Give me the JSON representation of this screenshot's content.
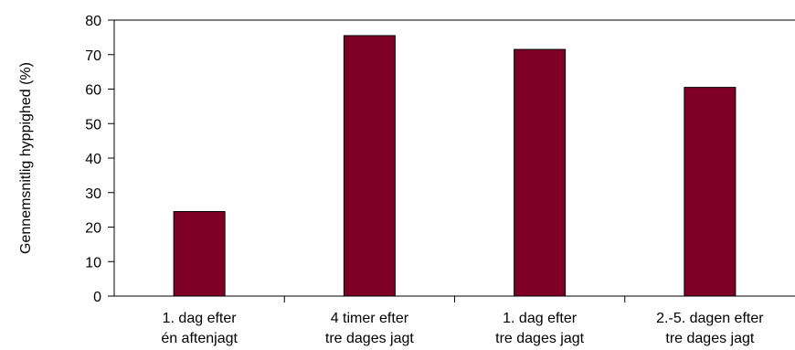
{
  "chart_data": {
    "type": "bar",
    "categories": [
      [
        "1. dag efter",
        "én aftenjagt"
      ],
      [
        "4 timer efter",
        "tre dages jagt"
      ],
      [
        "1. dag efter",
        "tre dages jagt"
      ],
      [
        "2.-5. dagen efter",
        "tre dages jagt"
      ]
    ],
    "values": [
      24.5,
      75.5,
      71.5,
      60.5
    ],
    "title": "",
    "xlabel": "",
    "ylabel": "Gennemsnitlig hyppighed (%)",
    "ylim": [
      0,
      80
    ],
    "yticks": [
      0,
      10,
      20,
      30,
      40,
      50,
      60,
      70,
      80
    ],
    "bar_color": "#7f0027",
    "grid": false,
    "legend": "none"
  }
}
